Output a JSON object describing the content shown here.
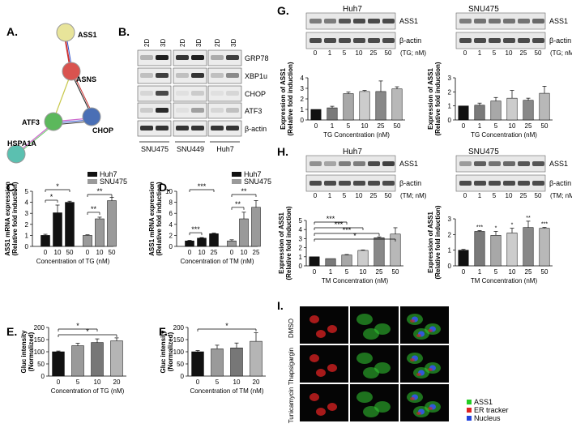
{
  "panels": {
    "A": {
      "label": "A.",
      "nodes": [
        {
          "name": "ASS1",
          "color": "#e8e49a"
        },
        {
          "name": "ASNS",
          "color": "#d9534f"
        },
        {
          "name": "ATF3",
          "color": "#5cb85c"
        },
        {
          "name": "CHOP",
          "color": "#4a6fb5"
        },
        {
          "name": "HSPA1A",
          "color": "#5bc0b0"
        }
      ]
    },
    "B": {
      "label": "B.",
      "col_labels": [
        "2D",
        "3D",
        "2D",
        "3D",
        "2D",
        "3D"
      ],
      "row_labels": [
        "GRP78",
        "XBP1u",
        "CHOP",
        "ATF3",
        "β-actin"
      ],
      "cell_lines": [
        "SNU475",
        "SNU449",
        "Huh7"
      ]
    },
    "G": {
      "label": "G.",
      "left_title": "Huh7",
      "right_title": "SNU475",
      "blot_labels": [
        "ASS1",
        "β-actin"
      ],
      "lanes": [
        "0",
        "1",
        "5",
        "10",
        "25",
        "50"
      ],
      "unit": "(TG; nM)"
    },
    "H": {
      "label": "H.",
      "left_title": "Huh7",
      "right_title": "SNU475",
      "blot_labels": [
        "ASS1",
        "β-actin"
      ],
      "lanes": [
        "0",
        "1",
        "5",
        "10",
        "25",
        "50"
      ],
      "unit": "(TM; nM)"
    },
    "I": {
      "label": "I.",
      "rows": [
        "DMSO",
        "Thapsigargin",
        "Tunicamycin"
      ],
      "legend": [
        {
          "text": "ASS1",
          "color": "#22cc22"
        },
        {
          "text": "ER tracker",
          "color": "#dd2222"
        },
        {
          "text": "Nucleus",
          "color": "#2244dd"
        }
      ]
    }
  },
  "chart_data": [
    {
      "id": "C",
      "type": "bar",
      "label": "C.",
      "ylabel_line1": "ASS1 mRNA expression",
      "ylabel_line2": "(Relative fold induction)",
      "xlabel": "Concentration of TG (nM)",
      "legend": [
        {
          "name": "Huh7",
          "color": "#111111"
        },
        {
          "name": "SNU475",
          "color": "#9a9a9a"
        }
      ],
      "ylim": [
        0,
        5
      ],
      "yticks": [
        0,
        1,
        2,
        3,
        4,
        5
      ],
      "groups": [
        {
          "series": "Huh7",
          "categories": [
            "0",
            "10",
            "50"
          ],
          "values": [
            1.0,
            3.05,
            4.0
          ],
          "errors": [
            0.1,
            0.7,
            0.1
          ]
        },
        {
          "series": "SNU475",
          "categories": [
            "0",
            "10",
            "50"
          ],
          "values": [
            1.0,
            2.5,
            4.15
          ],
          "errors": [
            0.05,
            0.15,
            0.3
          ]
        }
      ],
      "significance": [
        "*",
        "*",
        "**",
        "**"
      ]
    },
    {
      "id": "D",
      "type": "bar",
      "label": "D.",
      "ylabel_line1": "ASS1 mRNA expression",
      "ylabel_line2": "(Relative fold induction)",
      "xlabel": "Concentration of TM (nM)",
      "legend": [
        {
          "name": "Huh7",
          "color": "#111111"
        },
        {
          "name": "SNU475",
          "color": "#9a9a9a"
        }
      ],
      "ylim": [
        0,
        10
      ],
      "yticks": [
        0,
        2,
        4,
        6,
        8,
        10
      ],
      "groups": [
        {
          "series": "Huh7",
          "categories": [
            "0",
            "10",
            "25"
          ],
          "values": [
            1.0,
            1.5,
            2.3
          ],
          "errors": [
            0.1,
            0.1,
            0.1
          ]
        },
        {
          "series": "SNU475",
          "categories": [
            "0",
            "10",
            "25"
          ],
          "values": [
            1.0,
            5.0,
            7.1
          ],
          "errors": [
            0.2,
            1.2,
            1.2
          ]
        }
      ],
      "significance": [
        "***",
        "***",
        "**",
        "**"
      ]
    },
    {
      "id": "E",
      "type": "bar",
      "label": "E.",
      "ylabel_line1": "Gluc intensity",
      "ylabel_line2": "(Normalized)",
      "xlabel": "Concentration of TG (nM)",
      "ylim": [
        0,
        200
      ],
      "yticks": [
        0,
        50,
        100,
        150,
        200
      ],
      "categories": [
        "0",
        "5",
        "10",
        "20"
      ],
      "values": [
        100,
        125,
        138,
        145
      ],
      "errors": [
        3,
        10,
        15,
        12
      ],
      "colors": [
        "#111111",
        "#9a9a9a",
        "#777777",
        "#b5b5b5"
      ],
      "significance": [
        "*",
        "*"
      ]
    },
    {
      "id": "F",
      "type": "bar",
      "label": "F.",
      "ylabel_line1": "Gluc intensity",
      "ylabel_line2": "(Normalized)",
      "xlabel": "Concentration of TM (nM)",
      "ylim": [
        0,
        200
      ],
      "yticks": [
        0,
        50,
        100,
        150,
        200
      ],
      "categories": [
        "0",
        "5",
        "10",
        "20"
      ],
      "values": [
        100,
        112,
        116,
        143
      ],
      "errors": [
        5,
        15,
        20,
        35
      ],
      "colors": [
        "#111111",
        "#9a9a9a",
        "#777777",
        "#b5b5b5"
      ],
      "significance": [
        "*"
      ]
    },
    {
      "id": "G-left",
      "type": "bar",
      "ylabel_line1": "Expression of ASS1",
      "ylabel_line2": "(Relative fold induction)",
      "xlabel": "TG Concentration (nM)",
      "ylim": [
        0,
        4
      ],
      "yticks": [
        0,
        1,
        2,
        3,
        4
      ],
      "categories": [
        "0",
        "1",
        "5",
        "10",
        "25",
        "50"
      ],
      "values": [
        1.0,
        1.15,
        2.5,
        2.7,
        2.7,
        2.95
      ],
      "errors": [
        0,
        0.15,
        0.15,
        0.1,
        1.0,
        0.2
      ],
      "colors": [
        "#111111",
        "#7a7a7a",
        "#a8a8a8",
        "#cccccc",
        "#888888",
        "#b8b8b8"
      ]
    },
    {
      "id": "G-right",
      "type": "bar",
      "ylabel_line1": "Expression of ASS1",
      "ylabel_line2": "(Relative fold induction)",
      "xlabel": "TG Concentration (nM)",
      "ylim": [
        0,
        3
      ],
      "yticks": [
        0,
        1,
        2,
        3
      ],
      "categories": [
        "0",
        "1",
        "5",
        "10",
        "25",
        "50"
      ],
      "values": [
        1.0,
        1.05,
        1.35,
        1.55,
        1.4,
        1.9
      ],
      "errors": [
        0,
        0.15,
        0.25,
        0.55,
        0.15,
        0.5
      ],
      "colors": [
        "#111111",
        "#7a7a7a",
        "#a8a8a8",
        "#cccccc",
        "#888888",
        "#b8b8b8"
      ]
    },
    {
      "id": "H-left",
      "type": "bar",
      "ylabel_line1": "Expression of ASS1",
      "ylabel_line2": "(Relative fold induction)",
      "xlabel": "TM Concentration (nM)",
      "ylim": [
        0,
        5
      ],
      "yticks": [
        0,
        1,
        2,
        3,
        4,
        5
      ],
      "categories": [
        "0",
        "1",
        "5",
        "10",
        "25",
        "50"
      ],
      "values": [
        1.0,
        0.8,
        1.2,
        1.7,
        3.1,
        3.5
      ],
      "errors": [
        0,
        0,
        0.05,
        0.05,
        0.1,
        0.7
      ],
      "colors": [
        "#111111",
        "#7a7a7a",
        "#a8a8a8",
        "#cccccc",
        "#888888",
        "#b8b8b8"
      ],
      "significance": [
        "***",
        "***",
        "***",
        "*"
      ]
    },
    {
      "id": "H-right",
      "type": "bar",
      "ylabel_line1": "Expression of ASS1",
      "ylabel_line2": "(Relative fold induction)",
      "xlabel": "TM Concentration (nM)",
      "ylim": [
        0,
        3
      ],
      "yticks": [
        0,
        1,
        2,
        3
      ],
      "categories": [
        "0",
        "1",
        "5",
        "10",
        "25",
        "50"
      ],
      "values": [
        1.0,
        2.2,
        1.95,
        2.1,
        2.45,
        2.4
      ],
      "errors": [
        0.05,
        0.05,
        0.25,
        0.3,
        0.4,
        0.05
      ],
      "colors": [
        "#111111",
        "#7a7a7a",
        "#a8a8a8",
        "#cccccc",
        "#888888",
        "#b8b8b8"
      ],
      "bar_stars": [
        "",
        "***",
        "*",
        "*",
        "**",
        "***"
      ]
    }
  ]
}
